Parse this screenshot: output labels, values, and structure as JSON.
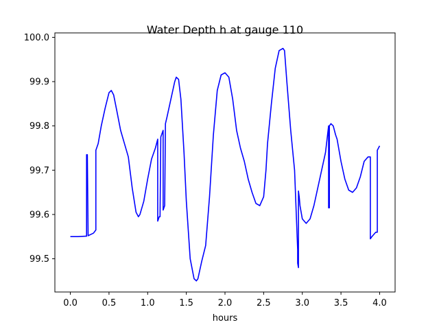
{
  "chart_data": {
    "type": "line",
    "title": "Water Depth h at gauge 110",
    "xlabel": "hours",
    "ylabel": "",
    "xlim": [
      -0.2,
      4.2
    ],
    "ylim": [
      99.425,
      100.01
    ],
    "xticks": [
      0.0,
      0.5,
      1.0,
      1.5,
      2.0,
      2.5,
      3.0,
      3.5,
      4.0
    ],
    "xtick_labels": [
      "0.0",
      "0.5",
      "1.0",
      "1.5",
      "2.0",
      "2.5",
      "3.0",
      "3.5",
      "4.0"
    ],
    "yticks": [
      99.5,
      99.6,
      99.7,
      99.8,
      99.9,
      100.0
    ],
    "ytick_labels": [
      "99.5",
      "99.6",
      "99.7",
      "99.8",
      "99.9",
      "100.0"
    ],
    "grid": false,
    "series": [
      {
        "name": "",
        "color": "#0000ff",
        "x": [
          0.0,
          0.1,
          0.2,
          0.21,
          0.21,
          0.22,
          0.22,
          0.23,
          0.23,
          0.3,
          0.33,
          0.33,
          0.36,
          0.4,
          0.45,
          0.5,
          0.53,
          0.56,
          0.6,
          0.65,
          0.7,
          0.75,
          0.8,
          0.85,
          0.88,
          0.9,
          0.95,
          1.0,
          1.05,
          1.1,
          1.13,
          1.13,
          1.15,
          1.16,
          1.17,
          1.17,
          1.19,
          1.19,
          1.2,
          1.2,
          1.22,
          1.23,
          1.25,
          1.3,
          1.35,
          1.37,
          1.4,
          1.43,
          1.47,
          1.5,
          1.55,
          1.6,
          1.63,
          1.65,
          1.7,
          1.75,
          1.8,
          1.85,
          1.9,
          1.95,
          2.0,
          2.05,
          2.1,
          2.15,
          2.2,
          2.25,
          2.3,
          2.35,
          2.4,
          2.45,
          2.5,
          2.53,
          2.55,
          2.6,
          2.65,
          2.7,
          2.75,
          2.77,
          2.8,
          2.85,
          2.9,
          2.94,
          2.94,
          2.95,
          2.95,
          2.96,
          2.97,
          3.0,
          3.05,
          3.1,
          3.15,
          3.2,
          3.25,
          3.3,
          3.34,
          3.34,
          3.35,
          3.35,
          3.37,
          3.4,
          3.43,
          3.45,
          3.5,
          3.55,
          3.6,
          3.65,
          3.7,
          3.75,
          3.8,
          3.85,
          3.88,
          3.88,
          3.9,
          3.95,
          3.97,
          3.97,
          4.0
        ],
        "y": [
          99.55,
          99.55,
          99.551,
          99.551,
          99.735,
          99.735,
          99.735,
          99.552,
          99.552,
          99.558,
          99.565,
          99.745,
          99.76,
          99.8,
          99.84,
          99.875,
          99.88,
          99.87,
          99.835,
          99.79,
          99.76,
          99.73,
          99.66,
          99.605,
          99.595,
          99.6,
          99.63,
          99.68,
          99.725,
          99.75,
          99.77,
          99.585,
          99.595,
          99.595,
          99.775,
          99.775,
          99.785,
          99.785,
          99.79,
          99.61,
          99.62,
          99.805,
          99.82,
          99.86,
          99.9,
          99.91,
          99.905,
          99.86,
          99.74,
          99.63,
          99.5,
          99.455,
          99.45,
          99.455,
          99.495,
          99.53,
          99.64,
          99.78,
          99.88,
          99.915,
          99.92,
          99.91,
          99.86,
          99.79,
          99.75,
          99.72,
          99.68,
          99.65,
          99.625,
          99.62,
          99.64,
          99.7,
          99.76,
          99.85,
          99.93,
          99.97,
          99.975,
          99.97,
          99.9,
          99.79,
          99.7,
          99.52,
          99.49,
          99.48,
          99.653,
          99.64,
          99.62,
          99.59,
          99.58,
          99.59,
          99.62,
          99.66,
          99.7,
          99.74,
          99.8,
          99.615,
          99.615,
          99.8,
          99.805,
          99.8,
          99.78,
          99.77,
          99.72,
          99.68,
          99.655,
          99.65,
          99.66,
          99.685,
          99.72,
          99.73,
          99.73,
          99.545,
          99.55,
          99.56,
          99.56,
          99.745,
          99.755
        ]
      }
    ]
  }
}
